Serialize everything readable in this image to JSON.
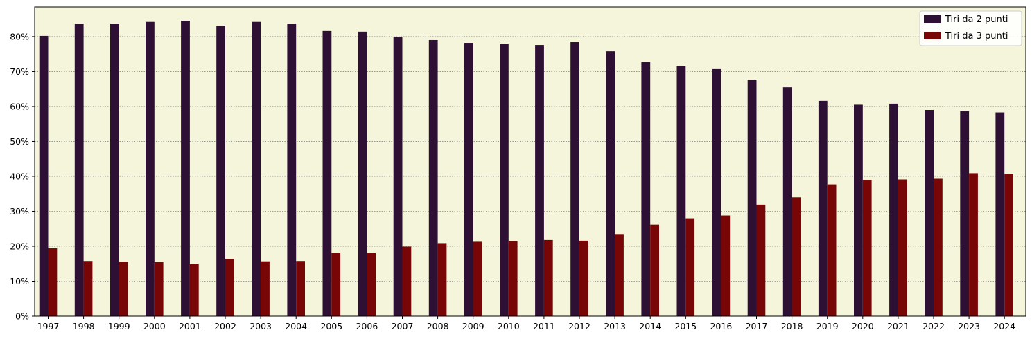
{
  "chart_data": {
    "type": "bar",
    "categories": [
      "1997",
      "1998",
      "1999",
      "2000",
      "2001",
      "2002",
      "2003",
      "2004",
      "2005",
      "2006",
      "2007",
      "2008",
      "2009",
      "2010",
      "2011",
      "2012",
      "2013",
      "2014",
      "2015",
      "2016",
      "2017",
      "2018",
      "2019",
      "2020",
      "2021",
      "2022",
      "2023",
      "2024"
    ],
    "series": [
      {
        "name": "Tiri da 2 punti",
        "color": "#2e1034",
        "values": [
          80.2,
          83.7,
          83.7,
          84.2,
          84.5,
          83.1,
          84.2,
          83.7,
          81.6,
          81.4,
          79.8,
          79.0,
          78.2,
          78.0,
          77.6,
          78.4,
          75.8,
          72.7,
          71.6,
          70.7,
          67.7,
          65.5,
          61.6,
          60.5,
          60.8,
          59.0,
          58.7,
          58.3
        ]
      },
      {
        "name": "Tiri da 3 punti",
        "color": "#780606",
        "values": [
          19.4,
          15.8,
          15.6,
          15.5,
          14.9,
          16.4,
          15.7,
          15.8,
          18.1,
          18.1,
          19.9,
          20.9,
          21.3,
          21.5,
          21.8,
          21.6,
          23.5,
          26.2,
          28.0,
          28.8,
          31.9,
          34.0,
          37.7,
          39.0,
          39.1,
          39.3,
          40.9,
          40.7
        ]
      }
    ],
    "title": "",
    "xlabel": "",
    "ylabel": "",
    "ylim": [
      0,
      88.5
    ],
    "yticks": [
      0,
      10,
      20,
      30,
      40,
      50,
      60,
      70,
      80
    ],
    "ytick_labels": [
      "0%",
      "10%",
      "20%",
      "30%",
      "40%",
      "50%",
      "60%",
      "70%",
      "80%"
    ],
    "grid": "horizontal dotted",
    "legend_position": "top-right",
    "background_color": "#f5f5dc"
  }
}
